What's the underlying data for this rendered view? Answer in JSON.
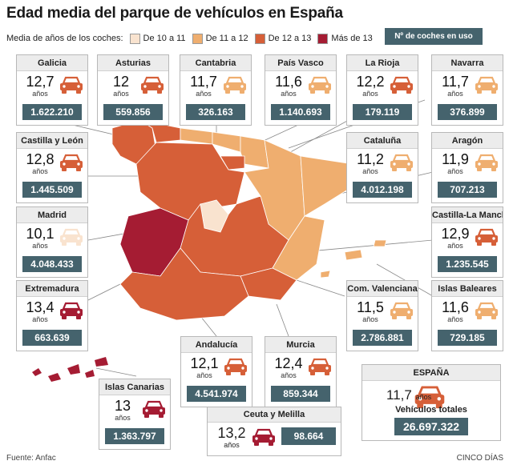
{
  "title": "Edad media del parque de vehículos en España",
  "legend": {
    "label": "Media de años de los coches:",
    "items": [
      {
        "label": "De 10 a 11",
        "color": "#f9e3cf"
      },
      {
        "label": "De 11 a 12",
        "color": "#efae6f"
      },
      {
        "label": "De 12 a 13",
        "color": "#d65f38"
      },
      {
        "label": "Más de 13",
        "color": "#a51c33"
      }
    ],
    "count_key": "Nº de coches en uso"
  },
  "years_unit": "años",
  "regions": [
    {
      "name": "Galicia",
      "age": "12,7",
      "count": "1.622.210",
      "color": "#d65f38"
    },
    {
      "name": "Asturias",
      "age": "12",
      "count": "559.856",
      "color": "#d65f38"
    },
    {
      "name": "Cantabria",
      "age": "11,7",
      "count": "326.163",
      "color": "#efae6f"
    },
    {
      "name": "País Vasco",
      "age": "11,6",
      "count": "1.140.693",
      "color": "#efae6f"
    },
    {
      "name": "La Rioja",
      "age": "12,2",
      "count": "179.119",
      "color": "#d65f38"
    },
    {
      "name": "Navarra",
      "age": "11,7",
      "count": "376.899",
      "color": "#efae6f"
    },
    {
      "name": "Castilla y León",
      "age": "12,8",
      "count": "1.445.509",
      "color": "#d65f38"
    },
    {
      "name": "Cataluña",
      "age": "11,2",
      "count": "4.012.198",
      "color": "#efae6f"
    },
    {
      "name": "Aragón",
      "age": "11,9",
      "count": "707.213",
      "color": "#efae6f"
    },
    {
      "name": "Madrid",
      "age": "10,1",
      "count": "4.048.433",
      "color": "#f9e3cf"
    },
    {
      "name": "Castilla-La Mancha",
      "age": "12,9",
      "count": "1.235.545",
      "color": "#d65f38"
    },
    {
      "name": "Extremadura",
      "age": "13,4",
      "count": "663.639",
      "color": "#a51c33"
    },
    {
      "name": "Com. Valenciana",
      "age": "11,5",
      "count": "2.786.881",
      "color": "#efae6f"
    },
    {
      "name": "Islas Baleares",
      "age": "11,6",
      "count": "729.185",
      "color": "#efae6f"
    },
    {
      "name": "Andalucía",
      "age": "12,1",
      "count": "4.541.974",
      "color": "#d65f38"
    },
    {
      "name": "Murcia",
      "age": "12,4",
      "count": "859.344",
      "color": "#d65f38"
    },
    {
      "name": "Islas Canarias",
      "age": "13",
      "count": "1.363.797",
      "color": "#a51c33"
    }
  ],
  "ceuta": {
    "name": "Ceuta y Melilla",
    "age": "13,2",
    "count": "98.664",
    "color": "#a51c33"
  },
  "spain": {
    "name": "ESPAÑA",
    "age": "11,7",
    "total_label": "Vehículos totales",
    "count": "26.697.322",
    "color": "#d65f38"
  },
  "footer": {
    "source": "Fuente: Anfac",
    "credit": "CINCO DÍAS"
  }
}
